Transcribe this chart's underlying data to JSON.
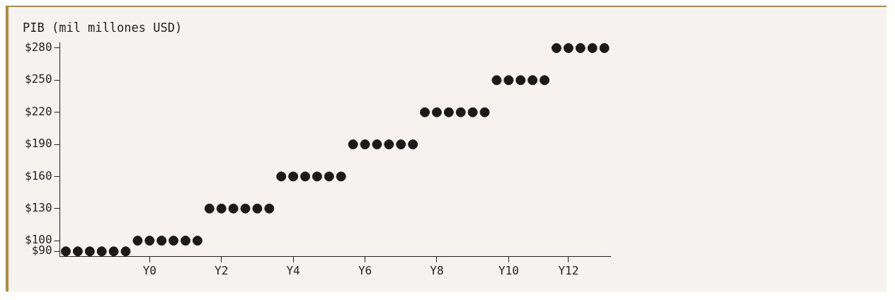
{
  "chart_data": {
    "type": "scatter",
    "ylabel": "PIB (mil millones USD)",
    "categories": [
      null,
      null,
      null,
      null,
      null,
      null,
      null,
      "Y0",
      null,
      null,
      null,
      null,
      null,
      "Y2",
      null,
      null,
      null,
      null,
      null,
      "Y4",
      null,
      null,
      null,
      null,
      null,
      "Y6",
      null,
      null,
      null,
      null,
      null,
      "Y8",
      null,
      null,
      null,
      null,
      null,
      "Y10",
      null,
      null,
      null,
      null,
      "Y12",
      null,
      null,
      null
    ],
    "series": [
      {
        "color": "#1a1a1a",
        "values": [
          90,
          90,
          90,
          90,
          90,
          90,
          100,
          100,
          100,
          100,
          100,
          100,
          130,
          130,
          130,
          130,
          130,
          130,
          160,
          160,
          160,
          160,
          160,
          160,
          190,
          190,
          190,
          190,
          190,
          190,
          220,
          220,
          220,
          220,
          220,
          220,
          250,
          250,
          250,
          250,
          250,
          280,
          280,
          280,
          280,
          280
        ]
      }
    ],
    "ylim": [
      85,
      285
    ],
    "yticks": [
      {
        "value": 90,
        "label": "$90"
      },
      {
        "value": 100,
        "label": "$100"
      },
      {
        "value": 130,
        "label": "$130"
      },
      {
        "value": 160,
        "label": "$160"
      },
      {
        "value": 190,
        "label": "$190"
      },
      {
        "value": 220,
        "label": "$220"
      },
      {
        "value": 250,
        "label": "$250"
      },
      {
        "value": 280,
        "label": "$280"
      }
    ],
    "grid": false,
    "legend": false,
    "marker": "circle"
  }
}
